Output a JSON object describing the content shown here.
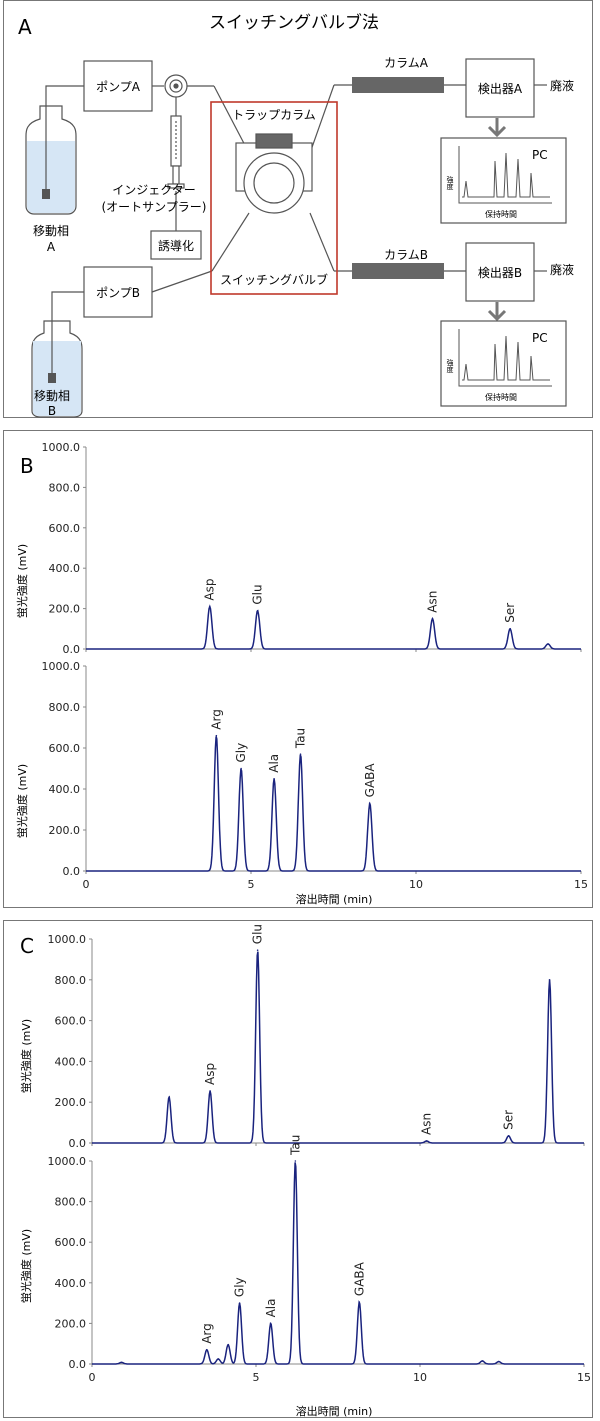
{
  "panel_a": {
    "letter": "A",
    "title": "スイッチングバルブ法",
    "pump_a": "ポンプA",
    "pump_b": "ポンプB",
    "mobile_a": "移動相",
    "mobile_a2": "A",
    "mobile_b": "移動相",
    "mobile_b2": "B",
    "injector": "インジェクター",
    "autosampler": "(オートサンプラー)",
    "derivatization": "誘導化",
    "trap_column": "トラップカラム",
    "switching_valve": "スイッチングバルブ",
    "column_a": "カラムA",
    "column_b": "カラムB",
    "detector_a": "検出器A",
    "detector_b": "検出器B",
    "waste_a": "廃液",
    "waste_b": "廃液",
    "pc_a": "PC",
    "pc_b": "PC",
    "pc_ylabel": "強度",
    "pc_xlabel": "保持時間",
    "colors": {
      "highlight": "#c0392b",
      "column": "#666666",
      "liquid": "#d6e6f5"
    }
  },
  "panel_b": {
    "letter": "B",
    "ylabel_top": "蛍光強度 (mV)",
    "ylabel_bottom": "蛍光強度 (mV)",
    "xlabel": "溶出時間 (min)",
    "y_ticks": [
      "1000.0",
      "800.0",
      "600.0",
      "400.0",
      "200.0",
      "0.0"
    ],
    "x_ticks": [
      "0",
      "5",
      "10",
      "15"
    ]
  },
  "panel_c": {
    "letter": "C",
    "ylabel_top": "蛍光強度 (mV)",
    "ylabel_bottom": "蛍光強度 (mV)",
    "xlabel": "溶出時間 (min)",
    "y_ticks": [
      "1000.0",
      "800.0",
      "600.0",
      "400.0",
      "200.0",
      "0.0"
    ],
    "x_ticks": [
      "0",
      "5",
      "10",
      "15"
    ]
  },
  "chart_data": [
    {
      "type": "line",
      "panel": "B-upper",
      "ylabel": "蛍光強度 (mV)",
      "ylim": [
        0,
        1000
      ],
      "xlim": [
        0,
        15
      ],
      "peaks": [
        {
          "label": "Asp",
          "x": 3.75,
          "y": 210
        },
        {
          "label": "Glu",
          "x": 5.2,
          "y": 190
        },
        {
          "label": "Asn",
          "x": 10.5,
          "y": 150
        },
        {
          "label": "Ser",
          "x": 12.85,
          "y": 100
        },
        {
          "label": "",
          "x": 14.0,
          "y": 25
        }
      ]
    },
    {
      "type": "line",
      "panel": "B-lower",
      "ylabel": "蛍光強度 (mV)",
      "xlabel": "溶出時間 (min)",
      "ylim": [
        0,
        1000
      ],
      "xlim": [
        0,
        15
      ],
      "peaks": [
        {
          "label": "Arg",
          "x": 3.95,
          "y": 660
        },
        {
          "label": "Gly",
          "x": 4.7,
          "y": 500
        },
        {
          "label": "Ala",
          "x": 5.7,
          "y": 450
        },
        {
          "label": "Tau",
          "x": 6.5,
          "y": 570
        },
        {
          "label": "GABA",
          "x": 8.6,
          "y": 330
        }
      ]
    },
    {
      "type": "line",
      "panel": "C-upper",
      "ylabel": "蛍光強度 (mV)",
      "ylim": [
        0,
        1000
      ],
      "xlim": [
        0,
        15
      ],
      "peaks": [
        {
          "label": "",
          "x": 2.35,
          "y": 225
        },
        {
          "label": "Asp",
          "x": 3.6,
          "y": 255
        },
        {
          "label": "Glu",
          "x": 5.05,
          "y": 945
        },
        {
          "label": "Asn",
          "x": 10.2,
          "y": 10
        },
        {
          "label": "Ser",
          "x": 12.7,
          "y": 35
        },
        {
          "label": "",
          "x": 13.95,
          "y": 800
        }
      ]
    },
    {
      "type": "line",
      "panel": "C-lower",
      "ylabel": "蛍光強度 (mV)",
      "xlabel": "溶出時間 (min)",
      "ylim": [
        0,
        1000
      ],
      "xlim": [
        0,
        15
      ],
      "peaks": [
        {
          "label": "",
          "x": 0.9,
          "y": 8
        },
        {
          "label": "Arg",
          "x": 3.5,
          "y": 70
        },
        {
          "label": "",
          "x": 3.85,
          "y": 25
        },
        {
          "label": "",
          "x": 4.15,
          "y": 95
        },
        {
          "label": "Gly",
          "x": 4.5,
          "y": 300
        },
        {
          "label": "Ala",
          "x": 5.45,
          "y": 200
        },
        {
          "label": "Tau",
          "x": 6.2,
          "y": 1000
        },
        {
          "label": "GABA",
          "x": 8.15,
          "y": 305
        },
        {
          "label": "",
          "x": 11.9,
          "y": 15
        },
        {
          "label": "",
          "x": 12.4,
          "y": 12
        }
      ]
    }
  ]
}
